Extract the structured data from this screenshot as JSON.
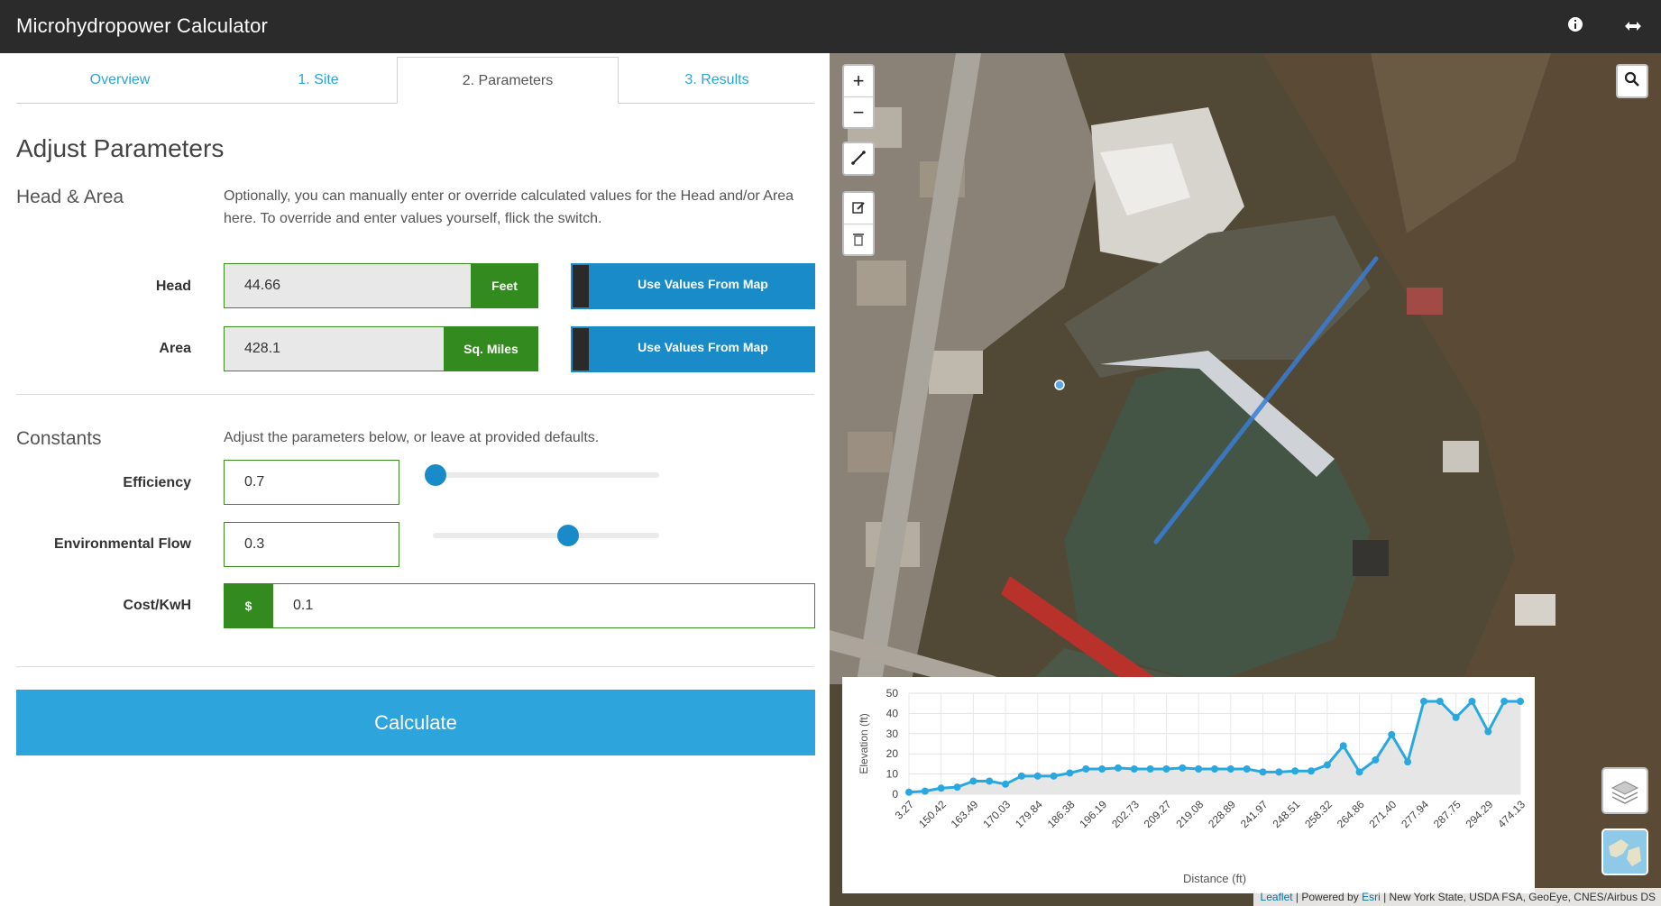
{
  "app": {
    "title": "Microhydropower Calculator"
  },
  "tabs": [
    {
      "label": "Overview"
    },
    {
      "label": "1. Site"
    },
    {
      "label": "2. Parameters"
    },
    {
      "label": "3. Results"
    }
  ],
  "parameters": {
    "heading": "Adjust Parameters",
    "head_area": {
      "heading": "Head & Area",
      "description": "Optionally, you can manually enter or override calculated values for the Head and/or Area here. To override and enter values yourself, flick the switch.",
      "head": {
        "label": "Head",
        "value": "44.66",
        "unit": "Feet",
        "map_button": "Use Values From Map"
      },
      "area": {
        "label": "Area",
        "value": "428.1",
        "unit": "Sq. Miles",
        "map_button": "Use Values From Map"
      }
    },
    "constants": {
      "heading": "Constants",
      "description": "Adjust the parameters below, or leave at provided defaults.",
      "efficiency": {
        "label": "Efficiency",
        "value": "0.7",
        "slider_fraction": 0.0
      },
      "environmental_flow": {
        "label": "Environmental Flow",
        "value": "0.3",
        "slider_fraction": 0.6
      },
      "cost": {
        "label": "Cost/KwH",
        "prefix": "$",
        "value": "0.1"
      }
    },
    "calculate_label": "Calculate"
  },
  "map": {
    "zoom_in": "+",
    "zoom_out": "−",
    "attribution": {
      "leaflet": "Leaflet",
      "powered_by": " | Powered by ",
      "esri": "Esri",
      "sources": " | New York State, USDA FSA, GeoEye, CNES/Airbus DS"
    }
  },
  "chart_data": {
    "type": "area",
    "xlabel": "Distance (ft)",
    "ylabel": "Elevation (ft)",
    "ylim": [
      0,
      50
    ],
    "y_ticks": [
      0,
      10,
      20,
      30,
      40,
      50
    ],
    "x_tick_labels": [
      "3.27",
      "150.42",
      "163.49",
      "170.03",
      "179.84",
      "186.38",
      "196.19",
      "202.73",
      "209.27",
      "219.08",
      "228.89",
      "241.97",
      "248.51",
      "258.32",
      "264.86",
      "271.40",
      "277.94",
      "287.75",
      "294.29",
      "474.13"
    ],
    "values": [
      1,
      1.5,
      3,
      3.5,
      6.5,
      6.5,
      5,
      9,
      9,
      9,
      10.5,
      12.5,
      12.5,
      13,
      12.5,
      12.5,
      12.5,
      13,
      12.5,
      12.5,
      12.5,
      12.5,
      11,
      11,
      11.5,
      11.5,
      14.5,
      24,
      11,
      17,
      29.5,
      16,
      46,
      46,
      38,
      46,
      31,
      46,
      46
    ],
    "color": "#29a8e0",
    "grid": true
  },
  "colors": {
    "accent": "#2da4dc",
    "green": "#338a1e",
    "map_button": "#1a8bc9",
    "topbar": "#2b2b2b"
  }
}
